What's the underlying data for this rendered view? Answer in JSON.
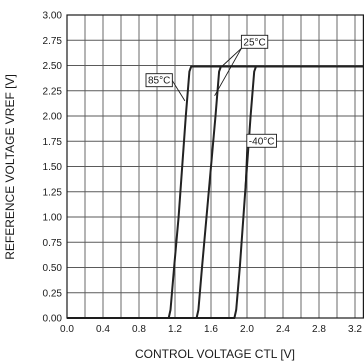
{
  "chart_data": {
    "type": "line",
    "title": "",
    "xlabel": "CONTROL VOLTAGE CTL [V]",
    "ylabel": "REFERENCE VOLTAGE VREF [V]",
    "xlim": [
      0,
      3.3
    ],
    "ylim": [
      0,
      3.0
    ],
    "x_ticks": [
      0.0,
      0.4,
      0.8,
      1.2,
      1.6,
      2.0,
      2.4,
      2.8,
      3.2
    ],
    "x_tick_labels": [
      "0.0",
      "0.4",
      "0.8",
      "1.2",
      "1.6",
      "2.0",
      "2.4",
      "2.8",
      "3.2"
    ],
    "y_ticks": [
      0.0,
      0.25,
      0.5,
      0.75,
      1.0,
      1.25,
      1.5,
      1.75,
      2.0,
      2.25,
      2.5,
      2.75,
      3.0
    ],
    "y_tick_labels": [
      "0.00",
      "0.25",
      "0.50",
      "0.75",
      "1.00",
      "1.25",
      "1.50",
      "1.75",
      "2.00",
      "2.25",
      "2.50",
      "2.75",
      "3.00"
    ],
    "x_minor_step": 0.2,
    "grid": true,
    "legend": "none",
    "line_color": "#222222",
    "series": [
      {
        "name": "85°C",
        "points": [
          [
            0,
            0
          ],
          [
            1.13,
            0
          ],
          [
            1.15,
            0.08
          ],
          [
            1.19,
            0.5
          ],
          [
            1.24,
            1.0
          ],
          [
            1.28,
            1.5
          ],
          [
            1.32,
            2.0
          ],
          [
            1.36,
            2.44
          ],
          [
            1.38,
            2.49
          ],
          [
            3.3,
            2.49
          ]
        ]
      },
      {
        "name": "25°C",
        "points": [
          [
            0,
            0
          ],
          [
            1.44,
            0
          ],
          [
            1.46,
            0.08
          ],
          [
            1.5,
            0.5
          ],
          [
            1.55,
            1.0
          ],
          [
            1.6,
            1.5
          ],
          [
            1.65,
            2.0
          ],
          [
            1.69,
            2.44
          ],
          [
            1.71,
            2.49
          ],
          [
            3.3,
            2.49
          ]
        ]
      },
      {
        "name": "-40°C",
        "points": [
          [
            0,
            0
          ],
          [
            1.86,
            0
          ],
          [
            1.88,
            0.08
          ],
          [
            1.92,
            0.5
          ],
          [
            1.96,
            1.0
          ],
          [
            2.0,
            1.5
          ],
          [
            2.04,
            2.0
          ],
          [
            2.08,
            2.44
          ],
          [
            2.1,
            2.49
          ],
          [
            3.3,
            2.49
          ]
        ]
      }
    ],
    "annotations": [
      {
        "text": "25°C",
        "x": 1.96,
        "y": 2.7,
        "target": [
          1.64,
          2.2
        ],
        "target2": [
          1.72,
          2.49
        ]
      },
      {
        "text": "85°C",
        "x": 0.9,
        "y": 2.32,
        "target": [
          1.31,
          2.15
        ]
      },
      {
        "text": "-40°C",
        "x": 2.02,
        "y": 1.72,
        "target": [
          1.98,
          1.3
        ]
      }
    ]
  }
}
